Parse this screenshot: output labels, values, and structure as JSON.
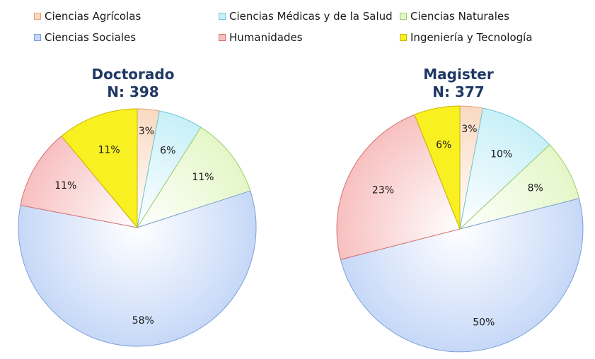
{
  "legend": [
    {
      "label": "Ciencias Agrícolas",
      "color": "#fad9c1",
      "border": "#e8a070"
    },
    {
      "label": "Ciencias Médicas y de la Salud",
      "color": "#c8f0f8",
      "border": "#6cc6d8"
    },
    {
      "label": "Ciencias Naturales",
      "color": "#e4f7c8",
      "border": "#9fcc6a"
    },
    {
      "label": "Ciencias Sociales",
      "color": "#c6d8f8",
      "border": "#7ea0d8"
    },
    {
      "label": "Humanidades",
      "color": "#f8c0c0",
      "border": "#d87070"
    },
    {
      "label": "Ingeniería y Tecnología",
      "color": "#f8f020",
      "border": "#c8b800"
    }
  ],
  "chart_data": [
    {
      "type": "pie",
      "title": "Doctorado",
      "subtitle": "N: 398",
      "categories": [
        "Ciencias Agrícolas",
        "Ciencias Médicas y de la Salud",
        "Ciencias Naturales",
        "Ciencias Sociales",
        "Humanidades",
        "Ingeniería y Tecnología"
      ],
      "values": [
        3,
        6,
        11,
        58,
        11,
        11
      ],
      "labels": [
        "3%",
        "6%",
        "11%",
        "58%",
        "11%",
        "11%"
      ],
      "legend": "top"
    },
    {
      "type": "pie",
      "title": "Magister",
      "subtitle": "N: 377",
      "categories": [
        "Ciencias Agrícolas",
        "Ciencias Médicas y de la Salud",
        "Ciencias Naturales",
        "Ciencias Sociales",
        "Humanidades",
        "Ingeniería y Tecnología"
      ],
      "values": [
        3,
        10,
        8,
        50,
        23,
        6
      ],
      "labels": [
        "3%",
        "10%",
        "8%",
        "50%",
        "23%",
        "6%"
      ],
      "legend": "top"
    }
  ]
}
